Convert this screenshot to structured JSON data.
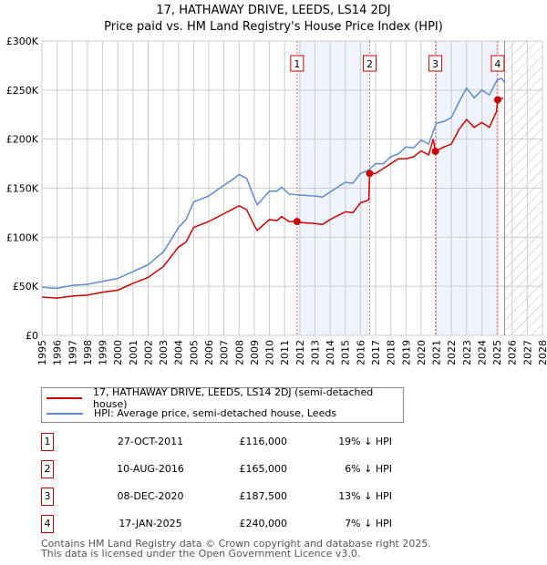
{
  "chart_data": {
    "type": "line",
    "title": "17, HATHAWAY DRIVE, LEEDS, LS14 2DJ",
    "subtitle": "Price paid vs. HM Land Registry's House Price Index (HPI)",
    "xlim": [
      1995,
      2028
    ],
    "ylim": [
      0,
      300000
    ],
    "yticks": [
      {
        "v": 0,
        "label": "£0"
      },
      {
        "v": 50000,
        "label": "£50K"
      },
      {
        "v": 100000,
        "label": "£100K"
      },
      {
        "v": 150000,
        "label": "£150K"
      },
      {
        "v": 200000,
        "label": "£200K"
      },
      {
        "v": 250000,
        "label": "£250K"
      },
      {
        "v": 300000,
        "label": "£300K"
      }
    ],
    "xticks": [
      "1995",
      "1996",
      "1997",
      "1998",
      "1999",
      "2000",
      "2001",
      "2002",
      "2003",
      "2004",
      "2005",
      "2006",
      "2007",
      "2008",
      "2009",
      "2010",
      "2011",
      "2012",
      "2013",
      "2014",
      "2015",
      "2016",
      "2017",
      "2018",
      "2019",
      "2020",
      "2021",
      "2022",
      "2023",
      "2024",
      "2025",
      "2026",
      "2027",
      "2028"
    ],
    "grid": true,
    "shaded_periods": [
      [
        2011.82,
        2016.61
      ],
      [
        2020.94,
        2025.05
      ]
    ],
    "forecast_from": 2025.5,
    "series": [
      {
        "name": "17, HATHAWAY DRIVE, LEEDS, LS14 2DJ (semi-detached house)",
        "color": "#cc0000",
        "x": [
          1995,
          1996,
          1997,
          1998,
          1999,
          2000,
          2001,
          2002,
          2003,
          2003.5,
          2004,
          2004.5,
          2005,
          2006,
          2007,
          2007.5,
          2008,
          2008.5,
          2009,
          2009.2,
          2010,
          2010.5,
          2010.8,
          2011.3,
          2011.82,
          2012,
          2013,
          2013.5,
          2014,
          2015,
          2015.5,
          2016,
          2016.55,
          2016.61,
          2017,
          2017.5,
          2018,
          2018.5,
          2019,
          2019.5,
          2020,
          2020.5,
          2020.8,
          2020.94,
          2021.5,
          2022,
          2022.5,
          2023,
          2023.5,
          2024,
          2024.5,
          2024.97,
          2025.05,
          2025.4
        ],
        "y": [
          39000,
          38000,
          40000,
          41000,
          44000,
          46000,
          53000,
          59000,
          70000,
          80000,
          90000,
          95000,
          110000,
          116000,
          124000,
          128000,
          132000,
          128000,
          112000,
          107000,
          118000,
          117000,
          121000,
          116000,
          116000,
          115000,
          114000,
          113000,
          118000,
          126000,
          125000,
          135000,
          138000,
          165000,
          165000,
          170000,
          175000,
          180000,
          180000,
          182000,
          188000,
          184000,
          200000,
          187500,
          192000,
          195000,
          210000,
          220000,
          212000,
          217000,
          212000,
          228000,
          240000,
          242000
        ]
      },
      {
        "name": "HPI: Average price, semi-detached house, Leeds",
        "color": "#5b8bd0",
        "x": [
          1995,
          1996,
          1997,
          1998,
          1999,
          2000,
          2001,
          2002,
          2003,
          2003.5,
          2004,
          2004.5,
          2005,
          2006,
          2007,
          2007.5,
          2008,
          2008.5,
          2009,
          2009.2,
          2010,
          2010.5,
          2010.8,
          2011.3,
          2012,
          2013,
          2013.5,
          2014,
          2015,
          2015.5,
          2016,
          2016.5,
          2017,
          2017.5,
          2018,
          2018.5,
          2019,
          2019.5,
          2020,
          2020.5,
          2021,
          2021.5,
          2022,
          2022.5,
          2023,
          2023.5,
          2024,
          2024.5,
          2025,
          2025.3,
          2025.5
        ],
        "y": [
          49000,
          48000,
          51000,
          52000,
          55000,
          58000,
          65000,
          72000,
          85000,
          97000,
          110000,
          118000,
          136000,
          142000,
          153000,
          158000,
          164000,
          160000,
          140000,
          133000,
          147000,
          147000,
          151000,
          144000,
          143000,
          142000,
          141000,
          146000,
          156000,
          155000,
          165000,
          168000,
          175000,
          175000,
          182000,
          185000,
          192000,
          191000,
          199000,
          195000,
          216000,
          218000,
          222000,
          238000,
          252000,
          242000,
          250000,
          245000,
          260000,
          262000,
          258000
        ]
      }
    ],
    "sales": [
      {
        "n": "1",
        "x": 2011.82,
        "date": "27-OCT-2011",
        "price": 116000,
        "price_label": "£116,000",
        "hpi": "19% ↓ HPI"
      },
      {
        "n": "2",
        "x": 2016.61,
        "date": "10-AUG-2016",
        "price": 165000,
        "price_label": "£165,000",
        "hpi": "6% ↓ HPI"
      },
      {
        "n": "3",
        "x": 2020.94,
        "date": "08-DEC-2020",
        "price": 187500,
        "price_label": "£187,500",
        "hpi": "13% ↓ HPI"
      },
      {
        "n": "4",
        "x": 2025.05,
        "date": "17-JAN-2025",
        "price": 240000,
        "price_label": "£240,000",
        "hpi": "7% ↓ HPI"
      }
    ],
    "legend": {
      "placement": "bottom",
      "red": "17, HATHAWAY DRIVE, LEEDS, LS14 2DJ (semi-detached house)",
      "blue": "HPI: Average price, semi-detached house, Leeds"
    }
  },
  "footer": {
    "line1": "Contains HM Land Registry data © Crown copyright and database right 2025.",
    "line2": "This data is licensed under the Open Government Licence v3.0."
  }
}
